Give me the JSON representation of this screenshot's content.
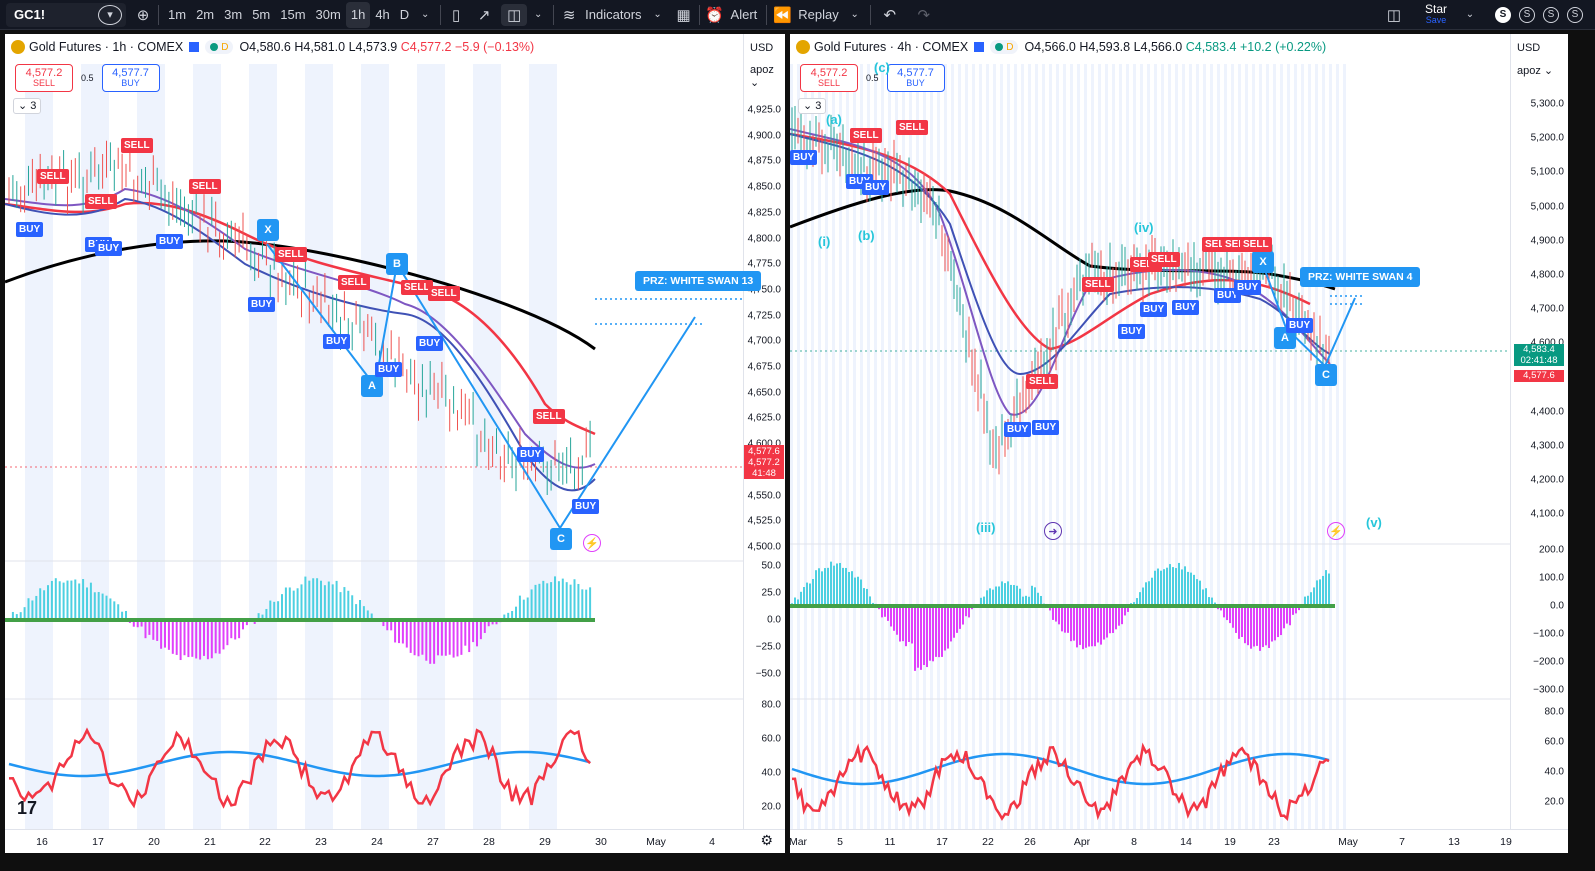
{
  "toolbar": {
    "symbol": "GC1!",
    "intervals": [
      "1m",
      "2m",
      "3m",
      "5m",
      "15m",
      "30m",
      "1h",
      "4h",
      "D"
    ],
    "active_interval": "1h",
    "indicators_label": "Indicators",
    "alert_label": "Alert",
    "replay_label": "Replay",
    "account_name": "Star",
    "account_sub": "Save",
    "icons": [
      "plus-circle-icon",
      "candles-icon",
      "line-icon",
      "bars-icon",
      "indicators-icon",
      "templates-icon",
      "alert-icon",
      "replay-icon",
      "undo-icon",
      "redo-icon",
      "layout-icon"
    ],
    "circle_buttons": [
      "S",
      "S",
      "S",
      "S"
    ]
  },
  "panel_left": {
    "title": "Gold Futures · 1h · COMEX",
    "open": "O4,580.6",
    "high": "H4,581.0",
    "low": "L4,573.9",
    "close": "C4,577.2",
    "change": "−5.9 (−0.13%)",
    "sell_price": "4,577.2",
    "sell_label": "SELL",
    "buy_price": "4,577.7",
    "buy_label": "BUY",
    "spread": "0.5",
    "collapsed_count": "3",
    "currency": "USD",
    "scale_mode": "apoz",
    "price_ticks": [
      "4,925.0",
      "4,900.0",
      "4,875.0",
      "4,850.0",
      "4,825.0",
      "4,800.0",
      "4,775.0",
      "4,750.0",
      "4,725.0",
      "4,700.0",
      "4,675.0",
      "4,650.0",
      "4,625.0",
      "4,600.0",
      "4,575.0",
      "4,550.0",
      "4,525.0",
      "4,500.0"
    ],
    "last_price_labels": [
      "4,577.6",
      "4,577.2",
      "41:48"
    ],
    "osc1_ticks": [
      "50.0",
      "25.0",
      "0.0",
      "−25.0",
      "−50.0"
    ],
    "osc2_ticks": [
      "80.0",
      "60.0",
      "40.0",
      "20.0"
    ],
    "time_ticks": [
      "16",
      "17",
      "20",
      "21",
      "22",
      "23",
      "24",
      "27",
      "28",
      "29",
      "30",
      "May",
      "4"
    ],
    "prz_label": "PRZ: WHITE SWAN 13",
    "points": [
      "X",
      "A",
      "B",
      "C"
    ],
    "signals": [
      "SELL",
      "BUY"
    ]
  },
  "panel_right": {
    "title": "Gold Futures · 4h · COMEX",
    "open": "O4,566.0",
    "high": "H4,593.8",
    "low": "L4,566.0",
    "close": "C4,583.4",
    "change": "+10.2 (+0.22%)",
    "sell_price": "4,577.2",
    "sell_label": "SELL",
    "buy_price": "4,577.7",
    "buy_label": "BUY",
    "spread": "0.5",
    "collapsed_count": "3",
    "currency": "USD",
    "scale_mode": "apoz",
    "price_ticks": [
      "5,300.0",
      "5,200.0",
      "5,100.0",
      "5,000.0",
      "4,900.0",
      "4,800.0",
      "4,700.0",
      "4,600.0",
      "4,500.0",
      "4,400.0",
      "4,300.0",
      "4,200.0",
      "4,100.0"
    ],
    "last_price_labels": [
      "4,583.4",
      "02:41:48",
      "4,577.6"
    ],
    "osc1_ticks": [
      "200.0",
      "100.0",
      "0.0",
      "−100.0",
      "−200.0",
      "−300.0"
    ],
    "osc2_ticks": [
      "80.0",
      "60.0",
      "40.0",
      "20.0"
    ],
    "time_ticks": [
      "Mar",
      "5",
      "11",
      "17",
      "22",
      "26",
      "Apr",
      "8",
      "14",
      "19",
      "23",
      "May",
      "7",
      "13",
      "19"
    ],
    "prz_label": "PRZ: WHITE SWAN 4",
    "waves": [
      "(a)",
      "(b)",
      "(c)",
      "(i)",
      "(iii)",
      "(iv)",
      "(v)"
    ],
    "points": [
      "X",
      "A",
      "C"
    ]
  },
  "colors": {
    "sell": "#f23645",
    "buy": "#2962ff",
    "pattern": "#2196f3",
    "ema": "#f23645",
    "sma": "#000000",
    "wave": "#26c6da"
  }
}
